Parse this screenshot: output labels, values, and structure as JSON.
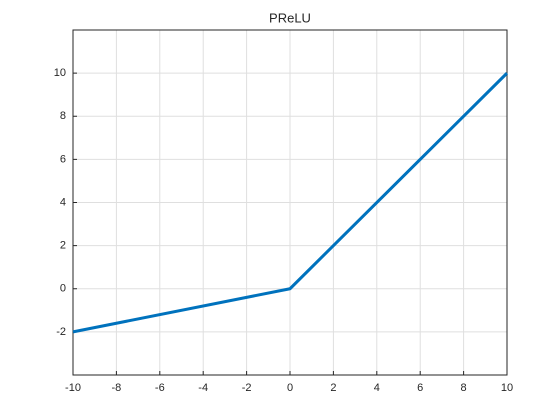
{
  "chart_data": {
    "type": "line",
    "title": "PReLU",
    "x": [
      -10,
      0,
      10
    ],
    "series": [
      {
        "name": "PReLU",
        "color": "#0072bd",
        "values": [
          -2,
          0,
          10
        ]
      }
    ],
    "xlim": [
      -10,
      10
    ],
    "xticks": [
      -10,
      -8,
      -6,
      -4,
      -2,
      0,
      2,
      4,
      6,
      8,
      10
    ],
    "ylim": [
      -4,
      12
    ],
    "yticks": [
      -2,
      0,
      2,
      4,
      6,
      8,
      10
    ],
    "grid": true
  }
}
